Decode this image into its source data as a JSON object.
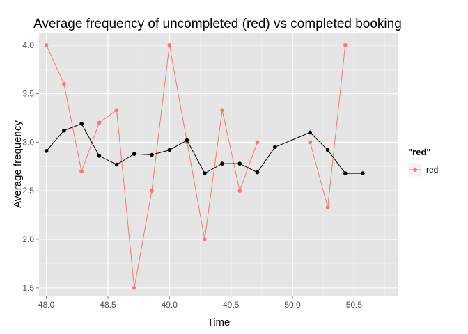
{
  "chart_data": {
    "type": "line",
    "title": "Average frequency of uncompleted (red) vs completed booking",
    "xlabel": "Time",
    "ylabel": "Average frequency",
    "xlim": [
      47.94,
      50.86
    ],
    "ylim": [
      1.42,
      4.12
    ],
    "x_ticks": [
      48.0,
      48.5,
      49.0,
      49.5,
      50.0,
      50.5
    ],
    "x_tick_labels": [
      "48.0",
      "48.5",
      "49.0",
      "49.5",
      "50.0",
      "50.5"
    ],
    "y_ticks": [
      1.5,
      2.0,
      2.5,
      3.0,
      3.5,
      4.0
    ],
    "y_tick_labels": [
      "1.5",
      "2.0",
      "2.5",
      "3.0",
      "3.5",
      "4.0"
    ],
    "grid": true,
    "legend": {
      "title": "\"red\"",
      "position": "right",
      "entries": [
        "red"
      ]
    },
    "series": [
      {
        "name": "red",
        "color": "#F8766D",
        "segments": [
          {
            "x": [
              48.0,
              48.143,
              48.286,
              48.429,
              48.571,
              48.714,
              48.857,
              49.0,
              49.143,
              49.286,
              49.429,
              49.571,
              49.714
            ],
            "y": [
              4.0,
              3.6,
              2.7,
              3.2,
              3.33,
              1.5,
              2.5,
              4.0,
              3.0,
              2.0,
              3.33,
              2.5,
              3.0
            ]
          },
          {
            "x": [
              50.143,
              50.286,
              50.429
            ],
            "y": [
              3.0,
              2.33,
              4.0
            ]
          }
        ]
      },
      {
        "color": "#000000",
        "segments": [
          {
            "x": [
              48.0,
              48.143,
              48.286,
              48.429,
              48.571,
              48.714,
              48.857,
              49.0,
              49.143,
              49.286,
              49.429,
              49.571,
              49.714,
              49.857,
              50.143,
              50.286,
              50.429,
              50.571
            ],
            "y": [
              2.91,
              3.12,
              3.19,
              2.86,
              2.77,
              2.88,
              2.87,
              2.92,
              3.02,
              2.68,
              2.78,
              2.78,
              2.69,
              2.95,
              3.1,
              2.92,
              2.68,
              2.68
            ]
          }
        ]
      }
    ]
  }
}
